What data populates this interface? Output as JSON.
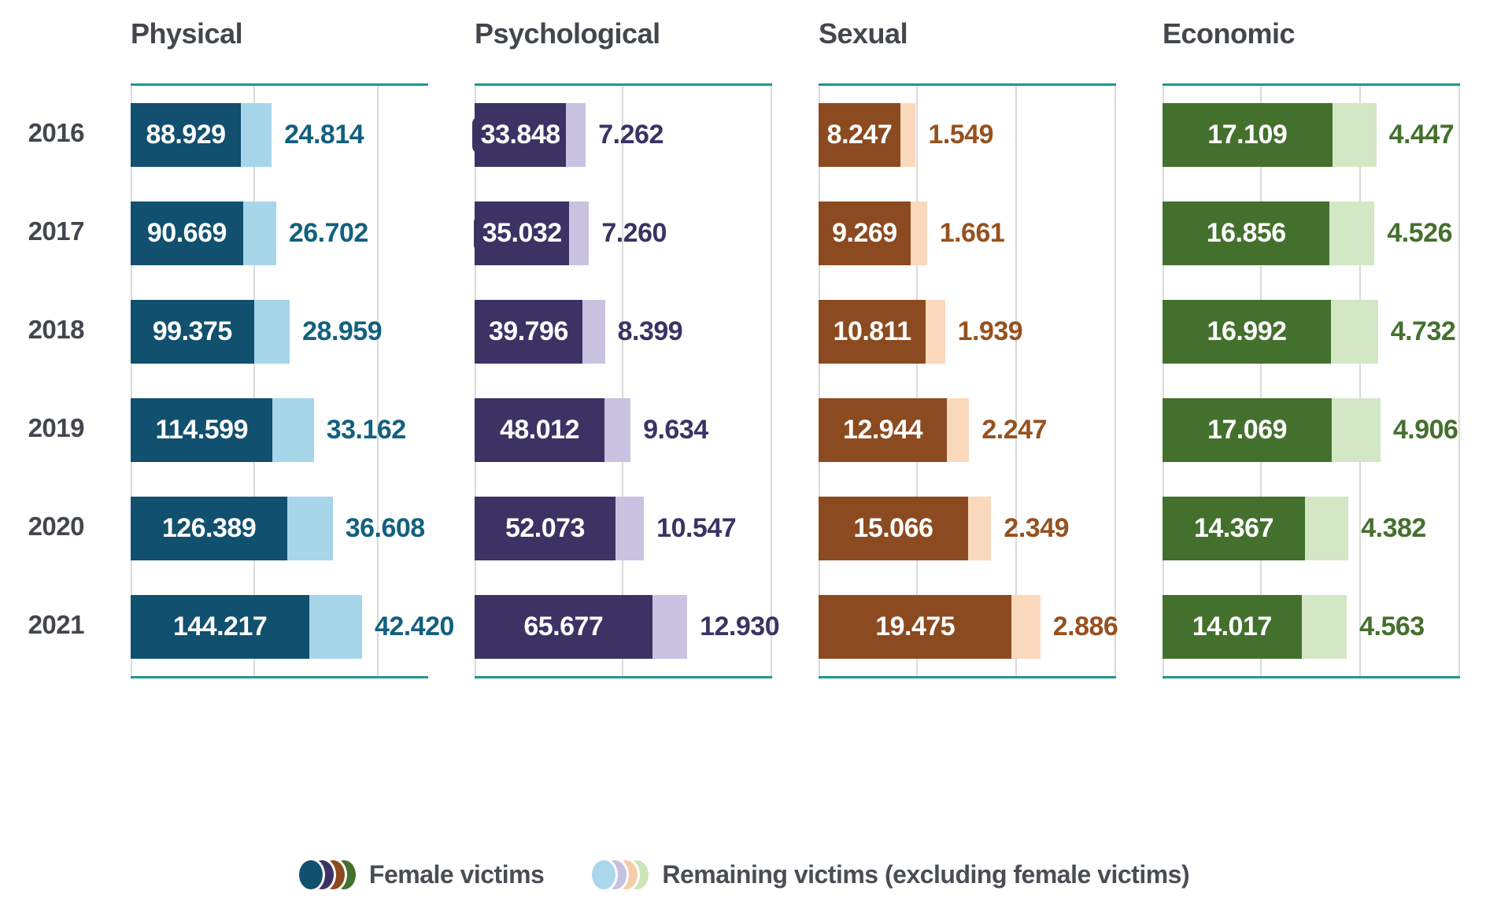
{
  "style": {
    "text_color": "#43474d",
    "axis_line_color": "#1b9a8d",
    "gridline_color": "#dadada",
    "legend_text_color": "#4a4e54",
    "background": "#ffffff"
  },
  "chart_data": [
    {
      "type": "bar",
      "orientation": "horizontal",
      "stacked": true,
      "grid": true,
      "title": "Physical",
      "categories": [
        "2016",
        "2017",
        "2018",
        "2019",
        "2020",
        "2021"
      ],
      "xlim": [
        0,
        240000
      ],
      "gridline_values": [
        0,
        100000,
        200000
      ],
      "value_label_color": "#13607f",
      "series": [
        {
          "name": "Female victims",
          "color": "#11506e",
          "values": [
            88929,
            90669,
            99375,
            114599,
            126389,
            144217
          ],
          "labels": [
            "88.929",
            "90.669",
            "99.375",
            "114.599",
            "126.389",
            "144.217"
          ]
        },
        {
          "name": "Remaining victims (excluding female victims)",
          "color": "#a7d5ea",
          "values": [
            24814,
            26702,
            28959,
            33162,
            36608,
            42420
          ],
          "labels": [
            "24.814",
            "26.702",
            "28.959",
            "33.162",
            "36.608",
            "42.420"
          ]
        }
      ]
    },
    {
      "type": "bar",
      "orientation": "horizontal",
      "stacked": true,
      "grid": true,
      "title": "Psychological",
      "categories": [
        "2016",
        "2017",
        "2018",
        "2019",
        "2020",
        "2021"
      ],
      "xlim": [
        0,
        110000
      ],
      "gridline_values": [
        0,
        55000,
        110000
      ],
      "value_label_color": "#3c3264",
      "series": [
        {
          "name": "Female victims",
          "color": "#3c3264",
          "values": [
            33848,
            35032,
            39796,
            48012,
            52073,
            65677
          ],
          "labels": [
            "33.848",
            "35.032",
            "39.796",
            "48.012",
            "52.073",
            "65.677"
          ]
        },
        {
          "name": "Remaining victims (excluding female victims)",
          "color": "#c9c3e1",
          "values": [
            7262,
            7260,
            8399,
            9634,
            10547,
            12930
          ],
          "labels": [
            "7.262",
            "7.260",
            "8.399",
            "9.634",
            "10.547",
            "12.930"
          ]
        }
      ]
    },
    {
      "type": "bar",
      "orientation": "horizontal",
      "stacked": true,
      "grid": true,
      "title": "Sexual",
      "categories": [
        "2016",
        "2017",
        "2018",
        "2019",
        "2020",
        "2021"
      ],
      "xlim": [
        0,
        30000
      ],
      "gridline_values": [
        0,
        10000,
        20000,
        30000
      ],
      "value_label_color": "#96511e",
      "series": [
        {
          "name": "Female victims",
          "color": "#8c4a20",
          "values": [
            8247,
            9269,
            10811,
            12944,
            15066,
            19475
          ],
          "labels": [
            "8.247",
            "9.269",
            "10.811",
            "12.944",
            "15.066",
            "19.475"
          ]
        },
        {
          "name": "Remaining victims (excluding female victims)",
          "color": "#f9d8bc",
          "values": [
            1549,
            1661,
            1939,
            2247,
            2349,
            2886
          ],
          "labels": [
            "1.549",
            "1.661",
            "1.939",
            "2.247",
            "2.349",
            "2.886"
          ]
        }
      ]
    },
    {
      "type": "bar",
      "orientation": "horizontal",
      "stacked": true,
      "grid": true,
      "title": "Economic",
      "categories": [
        "2016",
        "2017",
        "2018",
        "2019",
        "2020",
        "2021"
      ],
      "xlim": [
        0,
        30000
      ],
      "gridline_values": [
        0,
        10000,
        20000,
        30000
      ],
      "value_label_color": "#44702d",
      "series": [
        {
          "name": "Female victims",
          "color": "#44702d",
          "values": [
            17109,
            16856,
            16992,
            17069,
            14367,
            14017
          ],
          "labels": [
            "17.109",
            "16.856",
            "16.992",
            "17.069",
            "14.367",
            "14.017"
          ]
        },
        {
          "name": "Remaining victims (excluding female victims)",
          "color": "#d3e7c5",
          "values": [
            4447,
            4526,
            4732,
            4906,
            4382,
            4563
          ],
          "labels": [
            "4.447",
            "4.526",
            "4.732",
            "4.906",
            "4.382",
            "4.563"
          ]
        }
      ]
    }
  ],
  "legend": {
    "items": [
      {
        "label": "Female victims",
        "colors": [
          "#11506e",
          "#3c3264",
          "#8c4a20",
          "#44702d"
        ]
      },
      {
        "label": "Remaining victims (excluding female victims)",
        "colors": [
          "#abd7ec",
          "#c7c1e0",
          "#f6cda9",
          "#cbe4b8"
        ]
      }
    ]
  }
}
